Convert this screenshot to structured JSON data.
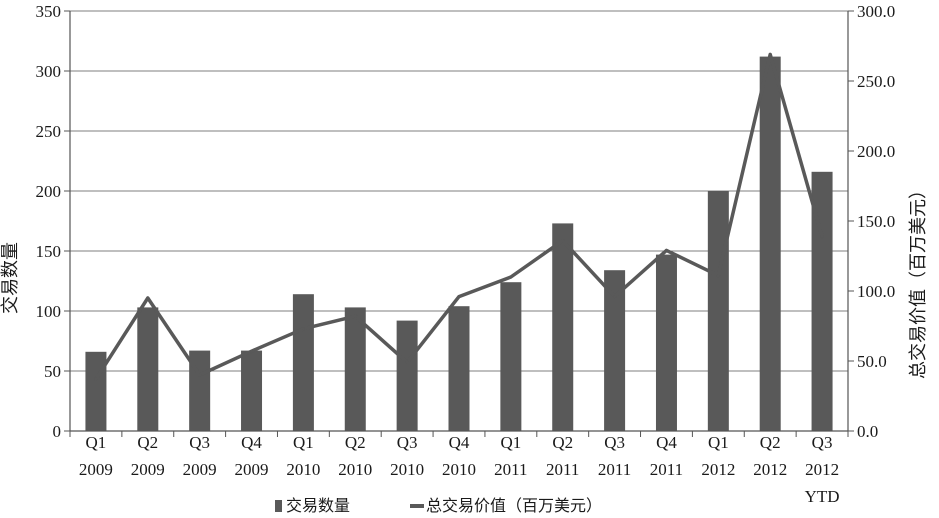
{
  "chart_data": {
    "type": "bar",
    "categories": [
      [
        "Q1",
        "2009"
      ],
      [
        "Q2",
        "2009"
      ],
      [
        "Q3",
        "2009"
      ],
      [
        "Q4",
        "2009"
      ],
      [
        "Q1",
        "2010"
      ],
      [
        "Q2",
        "2010"
      ],
      [
        "Q3",
        "2010"
      ],
      [
        "Q4",
        "2010"
      ],
      [
        "Q1",
        "2011"
      ],
      [
        "Q2",
        "2011"
      ],
      [
        "Q3",
        "2011"
      ],
      [
        "Q4",
        "2011"
      ],
      [
        "Q1",
        "2012"
      ],
      [
        "Q2",
        "2012"
      ],
      [
        "Q3",
        "2012",
        "YTD"
      ]
    ],
    "series": [
      {
        "name": "交易数量",
        "type": "bar",
        "axis": "left",
        "color": "#595959",
        "values": [
          66,
          103,
          67,
          67,
          114,
          103,
          92,
          104,
          124,
          173,
          134,
          147,
          200,
          312,
          216
        ]
      },
      {
        "name": "总交易价值（百万美元）",
        "type": "line",
        "axis": "right",
        "color": "#595959",
        "values": [
          37.0,
          95.0,
          40.0,
          57.0,
          73.0,
          82.0,
          49.0,
          96.0,
          110.0,
          136.0,
          96.0,
          129.0,
          111.0,
          269.0,
          139.0
        ]
      }
    ],
    "y_left": {
      "label": "交易数量",
      "range": [
        0,
        350
      ],
      "ticks": [
        "0",
        "50",
        "100",
        "150",
        "200",
        "250",
        "300",
        "350"
      ]
    },
    "y_right": {
      "label": "总交易价值（百万美元）",
      "range": [
        0,
        300
      ],
      "ticks": [
        "0.0",
        "50.0",
        "100.0",
        "150.0",
        "200.0",
        "250.0",
        "300.0"
      ]
    },
    "grid": true,
    "legend_position": "bottom"
  }
}
